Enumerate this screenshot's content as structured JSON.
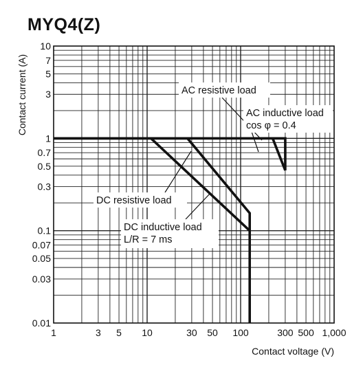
{
  "page": {
    "title": "MYQ4(Z)"
  },
  "chart_data": {
    "type": "line",
    "title": "MYQ4(Z)",
    "xlabel": "Contact voltage (V)",
    "ylabel": "Contact current (A)",
    "xscale": "log",
    "yscale": "log",
    "xlim": [
      1,
      1000
    ],
    "ylim": [
      0.01,
      10
    ],
    "grid": true,
    "xtick_values": [
      1,
      3,
      5,
      10,
      30,
      50,
      100,
      300,
      500,
      1000
    ],
    "xtick_labels": [
      "1",
      "3",
      "5",
      "10",
      "30",
      "50",
      "100",
      "300",
      "500",
      "1,000"
    ],
    "ytick_values": [
      10,
      7,
      5,
      3,
      1,
      0.7,
      0.5,
      0.3,
      0.1,
      0.07,
      0.05,
      0.03,
      0.01
    ],
    "ytick_labels": [
      "10",
      "7",
      "5",
      "3",
      "1",
      "0.7",
      "0.5",
      "0.3",
      "0.1",
      "0.07",
      "0.05",
      "0.03",
      "0.01"
    ],
    "series": [
      {
        "name": "AC resistive load",
        "x": [
          1,
          300,
          300
        ],
        "y": [
          1,
          1,
          0.45
        ]
      },
      {
        "name": "AC inductive load cos φ = 0.4",
        "x": [
          220,
          300
        ],
        "y": [
          1,
          0.45
        ]
      },
      {
        "name": "DC resistive load",
        "x": [
          1,
          27,
          125,
          125
        ],
        "y": [
          1,
          1,
          0.155,
          0.01
        ]
      },
      {
        "name": "DC inductive load L/R = 7 ms",
        "x": [
          11,
          125
        ],
        "y": [
          1,
          0.1
        ]
      }
    ],
    "annotations": [
      {
        "lines": [
          "AC resistive load"
        ]
      },
      {
        "lines": [
          "AC inductive load",
          "cos φ = 0.4"
        ]
      },
      {
        "lines": [
          "DC resistive load"
        ]
      },
      {
        "lines": [
          "DC inductive load",
          "L/R = 7 ms"
        ]
      }
    ]
  }
}
